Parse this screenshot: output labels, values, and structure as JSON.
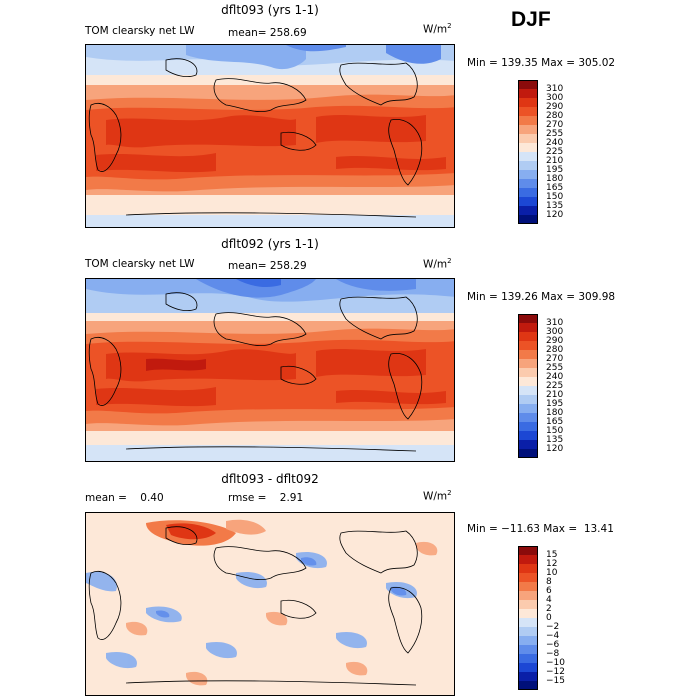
{
  "season": "DJF",
  "panels": [
    {
      "title": "dflt093 (yrs 1-1)",
      "left_label": "TOM clearsky net LW",
      "mean_label": "mean= 258.69",
      "units": "W/m",
      "units_sup": "2",
      "minmax": "Min = 139.35 Max = 305.02",
      "colorbar": [
        "310",
        "300",
        "290",
        "280",
        "270",
        "255",
        "240",
        "225",
        "210",
        "195",
        "180",
        "165",
        "150",
        "135",
        "120"
      ],
      "colors": [
        "#8b0b0b",
        "#c11a0e",
        "#df3614",
        "#ec5326",
        "#f27a48",
        "#f7a47c",
        "#fbcbae",
        "#fde8d8",
        "#d5e4f7",
        "#b0ccf3",
        "#87aef0",
        "#5f8cea",
        "#3a6be2",
        "#1c47d4",
        "#0a1fa8",
        "#00107a"
      ]
    },
    {
      "title": "dflt092 (yrs 1-1)",
      "left_label": "TOM clearsky net LW",
      "mean_label": "mean= 258.29",
      "units": "W/m",
      "units_sup": "2",
      "minmax": "Min = 139.26 Max = 309.98",
      "colorbar": [
        "310",
        "300",
        "290",
        "280",
        "270",
        "255",
        "240",
        "225",
        "210",
        "195",
        "180",
        "165",
        "150",
        "135",
        "120"
      ],
      "colors": [
        "#8b0b0b",
        "#c11a0e",
        "#df3614",
        "#ec5326",
        "#f27a48",
        "#f7a47c",
        "#fbcbae",
        "#fde8d8",
        "#d5e4f7",
        "#b0ccf3",
        "#87aef0",
        "#5f8cea",
        "#3a6be2",
        "#1c47d4",
        "#0a1fa8",
        "#00107a"
      ]
    },
    {
      "title": "dflt093 - dflt092",
      "left_label": "mean =    0.40",
      "mean_label": "rmse =    2.91",
      "units": "W/m",
      "units_sup": "2",
      "minmax": "Min = −11.63 Max =  13.41",
      "colorbar": [
        "15",
        "12",
        "10",
        "8",
        "6",
        "4",
        "2",
        "0",
        "−2",
        "−4",
        "−6",
        "−8",
        "−10",
        "−12",
        "−15"
      ],
      "colors": [
        "#8b0b0b",
        "#c11a0e",
        "#df3614",
        "#ec5326",
        "#f27a48",
        "#f7a47c",
        "#fbcbae",
        "#fde8d8",
        "#d5e4f7",
        "#b0ccf3",
        "#87aef0",
        "#5f8cea",
        "#3a6be2",
        "#1c47d4",
        "#0a1fa8",
        "#00107a"
      ]
    }
  ]
}
